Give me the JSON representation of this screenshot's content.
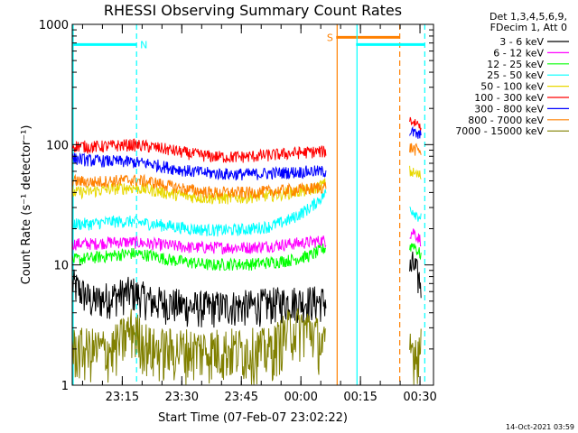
{
  "chart_data": {
    "type": "line",
    "title": "RHESSI Observing Summary Count Rates",
    "xlabel": "Start Time (07-Feb-07 23:02:22)",
    "ylabel": "Count Rate (s⁻¹ detector⁻¹)",
    "x_unit": "minutes after 23:02:22",
    "xlim": [
      0,
      91
    ],
    "ylim": [
      1,
      1000
    ],
    "y_scale": "log",
    "x_tick_labels": [
      {
        "label": "23:15",
        "x": 12.6
      },
      {
        "label": "23:30",
        "x": 27.6
      },
      {
        "label": "23:45",
        "x": 42.6
      },
      {
        "label": "00:00",
        "x": 57.6
      },
      {
        "label": "00:15",
        "x": 72.6
      },
      {
        "label": "00:30",
        "x": 87.6
      }
    ],
    "y_tick_labels": [
      {
        "label": "1",
        "value": 1
      },
      {
        "label": "10",
        "value": 10
      },
      {
        "label": "100",
        "value": 100
      },
      {
        "label": "1000",
        "value": 1000
      }
    ],
    "legend_header": [
      "Det 1,3,4,5,6,9,",
      "FDecim 1, Att 0"
    ],
    "legend_position": "outside-right",
    "series": [
      {
        "name": "3 - 6 keV",
        "color": "#000000",
        "style": "black",
        "segments": [
          {
            "x": [
              0,
              5,
              10,
              15,
              20,
              25,
              30,
              35,
              40,
              45,
              50,
              55,
              60,
              64
            ],
            "y": [
              7,
              5,
              5.5,
              6,
              5,
              4.8,
              4.5,
              4.5,
              4.6,
              4.6,
              4.8,
              5,
              5,
              5
            ]
          },
          {
            "x": [
              85,
              86,
              87,
              88
            ],
            "y": [
              9,
              10,
              8,
              7
            ]
          }
        ]
      },
      {
        "name": "6 - 12 keV",
        "color": "#ff00ff",
        "style": "magenta",
        "segments": [
          {
            "x": [
              0,
              5,
              10,
              15,
              20,
              25,
              30,
              35,
              40,
              45,
              50,
              55,
              60,
              64
            ],
            "y": [
              15,
              15,
              15.5,
              15.5,
              15,
              14.5,
              14,
              14,
              14,
              14,
              14.5,
              15,
              15.5,
              16
            ]
          },
          {
            "x": [
              85,
              86,
              87,
              88
            ],
            "y": [
              18,
              19,
              17,
              16
            ]
          }
        ]
      },
      {
        "name": "12 - 25 keV",
        "color": "#00ff00",
        "style": "green",
        "segments": [
          {
            "x": [
              0,
              5,
              10,
              15,
              20,
              25,
              30,
              35,
              40,
              45,
              50,
              55,
              60,
              64
            ],
            "y": [
              11,
              11.5,
              12,
              12.5,
              12,
              11,
              10.5,
              10,
              10.2,
              10.2,
              10.5,
              11,
              12,
              14
            ]
          },
          {
            "x": [
              85,
              86,
              87,
              88
            ],
            "y": [
              14,
              15,
              13,
              12
            ]
          }
        ]
      },
      {
        "name": "25 - 50 keV",
        "color": "#00ffff",
        "style": "cyan",
        "segments": [
          {
            "x": [
              0,
              5,
              10,
              15,
              20,
              25,
              30,
              35,
              40,
              45,
              50,
              55,
              60,
              64
            ],
            "y": [
              22,
              22,
              23,
              23,
              22,
              21,
              20,
              19.5,
              19.5,
              20,
              21,
              24,
              30,
              40
            ]
          },
          {
            "x": [
              85,
              86,
              87,
              88
            ],
            "y": [
              30,
              28,
              26,
              25
            ]
          }
        ]
      },
      {
        "name": "50 - 100 keV",
        "color": "#e8d800",
        "style": "yellow",
        "segments": [
          {
            "x": [
              0,
              5,
              10,
              15,
              20,
              25,
              30,
              35,
              40,
              45,
              50,
              55,
              60,
              64
            ],
            "y": [
              40,
              41,
              43,
              44,
              42,
              39,
              37,
              36,
              36,
              37,
              38,
              40,
              42,
              48
            ]
          },
          {
            "x": [
              85,
              86,
              87,
              88
            ],
            "y": [
              60,
              58,
              56,
              55
            ]
          }
        ]
      },
      {
        "name": "100 - 300 keV",
        "color": "#ff0000",
        "style": "red",
        "segments": [
          {
            "x": [
              0,
              5,
              10,
              15,
              20,
              25,
              30,
              35,
              40,
              45,
              50,
              55,
              60,
              64
            ],
            "y": [
              98,
              96,
              98,
              100,
              96,
              90,
              84,
              80,
              79,
              80,
              82,
              85,
              87,
              88
            ]
          },
          {
            "x": [
              85,
              86,
              87,
              88
            ],
            "y": [
              160,
              155,
              150,
              145
            ]
          }
        ]
      },
      {
        "name": "300 - 800 keV",
        "color": "#0000ff",
        "style": "blue",
        "segments": [
          {
            "x": [
              0,
              5,
              10,
              15,
              20,
              25,
              30,
              35,
              40,
              45,
              50,
              55,
              60,
              64
            ],
            "y": [
              77,
              74,
              73,
              72,
              69,
              64,
              60,
              58,
              57,
              57,
              58,
              59,
              60,
              60
            ]
          },
          {
            "x": [
              85,
              86,
              87,
              88
            ],
            "y": [
              130,
              125,
              120,
              118
            ]
          }
        ]
      },
      {
        "name": "800 - 7000 keV",
        "color": "#ff8000",
        "style": "orange",
        "segments": [
          {
            "x": [
              0,
              5,
              10,
              15,
              20,
              25,
              30,
              35,
              40,
              45,
              50,
              55,
              60,
              64
            ],
            "y": [
              50,
              49,
              50,
              51,
              49,
              45,
              42,
              40,
              40,
              40,
              41,
              42,
              43,
              45
            ]
          },
          {
            "x": [
              85,
              86,
              87,
              88
            ],
            "y": [
              95,
              92,
              90,
              88
            ]
          }
        ]
      },
      {
        "name": "7000 - 15000 keV",
        "color": "#808000",
        "style": "olive",
        "segments": [
          {
            "x": [
              0,
              5,
              10,
              15,
              20,
              25,
              30,
              35,
              40,
              45,
              50,
              55,
              60,
              64
            ],
            "y": [
              2,
              2,
              2,
              3,
              2,
              2,
              2,
              2,
              2,
              2,
              2,
              3,
              3,
              2
            ]
          },
          {
            "x": [
              85,
              86,
              87,
              88
            ],
            "y": [
              2,
              2,
              2,
              2
            ]
          }
        ]
      }
    ],
    "annotations": [
      {
        "label": "N",
        "kind": "night",
        "color": "#00ffff",
        "bar_x": [
          0,
          16.2
        ],
        "bar_y": 680,
        "dashed_x": 16.2,
        "solid_x": 0
      },
      {
        "label": "S",
        "kind": "saa",
        "color": "#ff8000",
        "bar_x": [
          66.5,
          82.5
        ],
        "bar_y": 780,
        "dashed_x": 82.5,
        "solid_x": 66.5
      },
      {
        "label": "",
        "kind": "night",
        "color": "#00ffff",
        "bar_x": [
          71.5,
          88.8
        ],
        "bar_y": 680,
        "dashed_x": 88.8,
        "solid_x": 71.5
      }
    ],
    "gaps": [
      [
        64,
        85
      ]
    ],
    "grid": false
  },
  "footer": {
    "timestamp": "14-Oct-2021 03:59"
  }
}
